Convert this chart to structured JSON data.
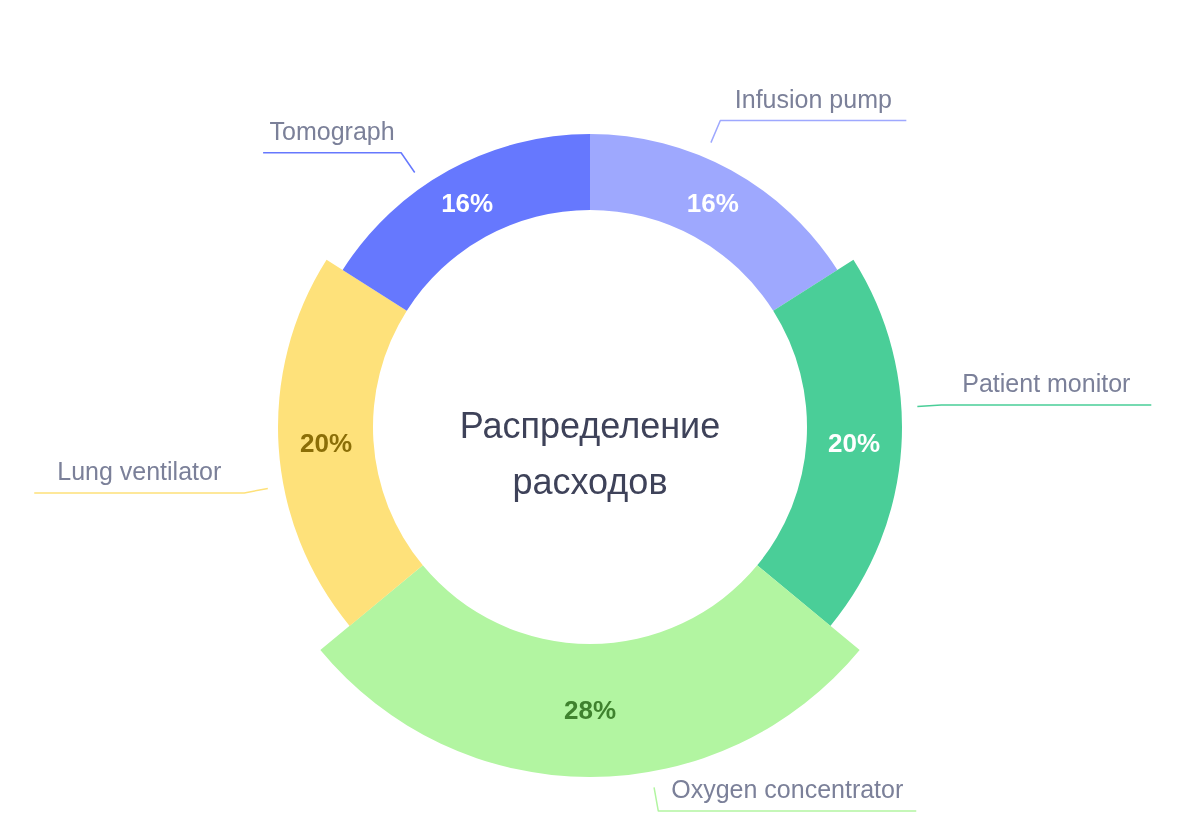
{
  "chart_data": {
    "type": "donut",
    "title": "Распределение расходов",
    "categories": [
      "Infusion pump",
      "Patient monitor",
      "Oxygen concentrator",
      "Lung ventilator",
      "Tomograph"
    ],
    "values": [
      16,
      20,
      28,
      20,
      16
    ],
    "colors": [
      "#9ea8fe",
      "#4ace98",
      "#b2f5a1",
      "#fee17a",
      "#6678fe"
    ],
    "value_labels": [
      "16%",
      "20%",
      "28%",
      "20%",
      "16%"
    ]
  }
}
